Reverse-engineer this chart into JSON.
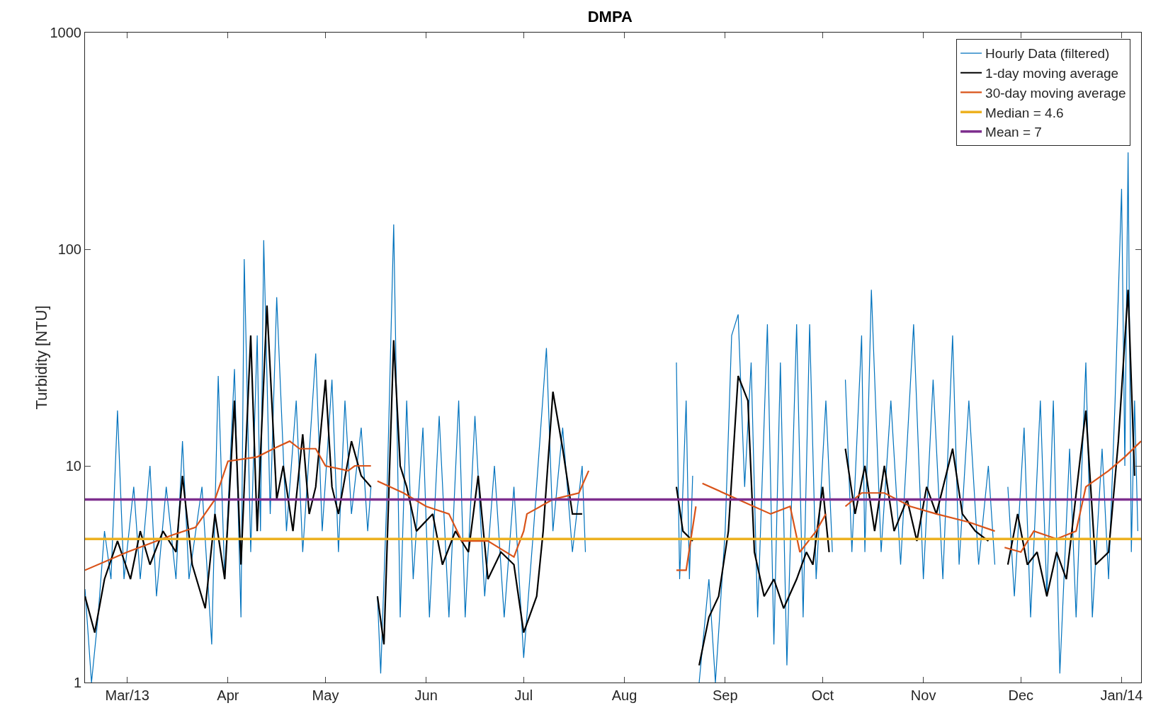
{
  "chart_data": {
    "type": "line",
    "title": "DMPA",
    "ylabel": "Turbidity [NTU]",
    "log": "y",
    "grid": false,
    "legend": "top right",
    "line_style": "solid",
    "marker": "none",
    "xlim": [
      "2013-02-16",
      "2014-01-07"
    ],
    "ylim": [
      1,
      1000
    ],
    "yticks": [
      1,
      10,
      100,
      1000
    ],
    "xticks": [
      {
        "value": "2013-03-01",
        "label": "Mar/13"
      },
      {
        "value": "2013-04-01",
        "label": "Apr"
      },
      {
        "value": "2013-05-01",
        "label": "May"
      },
      {
        "value": "2013-06-01",
        "label": "Jun"
      },
      {
        "value": "2013-07-01",
        "label": "Jul"
      },
      {
        "value": "2013-08-01",
        "label": "Aug"
      },
      {
        "value": "2013-09-01",
        "label": "Sep"
      },
      {
        "value": "2013-10-01",
        "label": "Oct"
      },
      {
        "value": "2013-11-01",
        "label": "Nov"
      },
      {
        "value": "2013-12-01",
        "label": "Dec"
      },
      {
        "value": "2014-01-01",
        "label": "Jan/14"
      }
    ],
    "series": [
      {
        "name": "Hourly Data (filtered)",
        "color": "#0072bd",
        "x": [
          "2013-02-16",
          "2013-02-18",
          "2013-02-20",
          "2013-02-22",
          "2013-02-24",
          "2013-02-26",
          "2013-02-28",
          "2013-03-03",
          "2013-03-05",
          "2013-03-08",
          "2013-03-10",
          "2013-03-13",
          "2013-03-16",
          "2013-03-18",
          "2013-03-20",
          "2013-03-24",
          "2013-03-27",
          "2013-03-29",
          "2013-03-31",
          "2013-04-03",
          "2013-04-05",
          "2013-04-06",
          "2013-04-08",
          "2013-04-10",
          "2013-04-11",
          "2013-04-12",
          "2013-04-14",
          "2013-04-16",
          "2013-04-19",
          "2013-04-22",
          "2013-04-24",
          "2013-04-28",
          "2013-04-30",
          "2013-05-03",
          "2013-05-05",
          "2013-05-07",
          "2013-05-09",
          "2013-05-12",
          "2013-05-14",
          "2013-05-15",
          "2013-05-16",
          "2013-05-17",
          "2013-05-18",
          "2013-05-20",
          "2013-05-22",
          "2013-05-24",
          "2013-05-26",
          "2013-05-28",
          "2013-05-31",
          "2013-06-02",
          "2013-06-05",
          "2013-06-08",
          "2013-06-11",
          "2013-06-13",
          "2013-06-16",
          "2013-06-19",
          "2013-06-22",
          "2013-06-25",
          "2013-06-28",
          "2013-07-01",
          "2013-07-04",
          "2013-07-08",
          "2013-07-10",
          "2013-07-13",
          "2013-07-16",
          "2013-07-19",
          "2013-07-20",
          "2013-08-01",
          "2013-08-17",
          "2013-08-18",
          "2013-08-20",
          "2013-08-21",
          "2013-08-22",
          "2013-08-23",
          "2013-08-24",
          "2013-08-27",
          "2013-08-29",
          "2013-09-01",
          "2013-09-03",
          "2013-09-05",
          "2013-09-07",
          "2013-09-09",
          "2013-09-11",
          "2013-09-14",
          "2013-09-16",
          "2013-09-18",
          "2013-09-20",
          "2013-09-23",
          "2013-09-25",
          "2013-09-27",
          "2013-09-29",
          "2013-10-02",
          "2013-10-04",
          "2013-10-06",
          "2013-10-08",
          "2013-10-10",
          "2013-10-13",
          "2013-10-14",
          "2013-10-16",
          "2013-10-19",
          "2013-10-22",
          "2013-10-25",
          "2013-10-29",
          "2013-11-01",
          "2013-11-04",
          "2013-11-07",
          "2013-11-10",
          "2013-11-12",
          "2013-11-15",
          "2013-11-18",
          "2013-11-21",
          "2013-11-23",
          "2013-11-25",
          "2013-11-27",
          "2013-11-29",
          "2013-12-02",
          "2013-12-04",
          "2013-12-07",
          "2013-12-09",
          "2013-12-11",
          "2013-12-13",
          "2013-12-16",
          "2013-12-18",
          "2013-12-21",
          "2013-12-23",
          "2013-12-26",
          "2013-12-28",
          "2013-12-30",
          "2014-01-01",
          "2014-01-02",
          "2014-01-03",
          "2014-01-04",
          "2014-01-05",
          "2014-01-06"
        ],
        "values": [
          2.7,
          1.0,
          2,
          5,
          3,
          18,
          3,
          8,
          3,
          10,
          2.5,
          8,
          3,
          13,
          3,
          8,
          1.5,
          26,
          3,
          28,
          2,
          90,
          4,
          40,
          5,
          110,
          6,
          60,
          5,
          20,
          4,
          33,
          5,
          25,
          4,
          20,
          6,
          15,
          5,
          8,
          null,
          2.5,
          1.1,
          8,
          130,
          2,
          20,
          3,
          15,
          2,
          17,
          2,
          20,
          2,
          17,
          2.5,
          10,
          2,
          8,
          1.3,
          5,
          35,
          5,
          15,
          4,
          10,
          4,
          null,
          30,
          3,
          20,
          3,
          9,
          null,
          1.0,
          3,
          1.0,
          5,
          40,
          50,
          8,
          30,
          2,
          45,
          1.5,
          30,
          1.2,
          45,
          2,
          45,
          3,
          20,
          4,
          null,
          25,
          4,
          40,
          4,
          65,
          4,
          20,
          3.5,
          45,
          3,
          25,
          3,
          40,
          3.5,
          20,
          3.5,
          10,
          3.5,
          null,
          8,
          2.5,
          15,
          2,
          20,
          2.5,
          20,
          1.1,
          12,
          2,
          30,
          2,
          12,
          3,
          20,
          190,
          10,
          280,
          4,
          20,
          5
        ]
      },
      {
        "name": "1-day moving average",
        "color": "#000000",
        "x": [
          "2013-02-16",
          "2013-02-19",
          "2013-02-22",
          "2013-02-26",
          "2013-03-02",
          "2013-03-05",
          "2013-03-08",
          "2013-03-12",
          "2013-03-16",
          "2013-03-18",
          "2013-03-21",
          "2013-03-25",
          "2013-03-28",
          "2013-03-31",
          "2013-04-03",
          "2013-04-05",
          "2013-04-08",
          "2013-04-10",
          "2013-04-13",
          "2013-04-16",
          "2013-04-18",
          "2013-04-21",
          "2013-04-24",
          "2013-04-26",
          "2013-04-28",
          "2013-05-01",
          "2013-05-03",
          "2013-05-05",
          "2013-05-09",
          "2013-05-12",
          "2013-05-15",
          "2013-05-16",
          "2013-05-17",
          "2013-05-19",
          "2013-05-22",
          "2013-05-24",
          "2013-05-26",
          "2013-05-29",
          "2013-06-03",
          "2013-06-06",
          "2013-06-10",
          "2013-06-14",
          "2013-06-17",
          "2013-06-20",
          "2013-06-24",
          "2013-06-28",
          "2013-07-01",
          "2013-07-05",
          "2013-07-07",
          "2013-07-10",
          "2013-07-13",
          "2013-07-16",
          "2013-07-19",
          "2013-08-01",
          "2013-08-17",
          "2013-08-19",
          "2013-08-22",
          "2013-08-23",
          "2013-08-24",
          "2013-08-27",
          "2013-08-30",
          "2013-09-02",
          "2013-09-05",
          "2013-09-08",
          "2013-09-10",
          "2013-09-13",
          "2013-09-16",
          "2013-09-19",
          "2013-09-23",
          "2013-09-26",
          "2013-09-28",
          "2013-10-01",
          "2013-10-03",
          "2013-10-06",
          "2013-10-08",
          "2013-10-11",
          "2013-10-14",
          "2013-10-17",
          "2013-10-20",
          "2013-10-23",
          "2013-10-27",
          "2013-10-30",
          "2013-11-02",
          "2013-11-05",
          "2013-11-10",
          "2013-11-13",
          "2013-11-17",
          "2013-11-21",
          "2013-11-25",
          "2013-11-27",
          "2013-11-30",
          "2013-12-03",
          "2013-12-06",
          "2013-12-09",
          "2013-12-12",
          "2013-12-15",
          "2013-12-19",
          "2013-12-21",
          "2013-12-24",
          "2013-12-28",
          "2013-12-31",
          "2014-01-03",
          "2014-01-05"
        ],
        "values": [
          2.5,
          1.7,
          3,
          4.5,
          3,
          5,
          3.5,
          5,
          4,
          9,
          3.5,
          2.2,
          6,
          3,
          20,
          3.5,
          40,
          5,
          55,
          7,
          10,
          5,
          14,
          6,
          8,
          25,
          8,
          6,
          13,
          9,
          8,
          null,
          2.5,
          1.5,
          38,
          10,
          8,
          5,
          6,
          3.5,
          5,
          4,
          9,
          3,
          4,
          3.5,
          1.7,
          2.5,
          5,
          22,
          12,
          6,
          6,
          null,
          8,
          5,
          4.5,
          null,
          1.2,
          2,
          2.5,
          5,
          26,
          20,
          4,
          2.5,
          3,
          2.2,
          3,
          4,
          3.5,
          8,
          4,
          null,
          12,
          6,
          10,
          5,
          10,
          5,
          7,
          4.5,
          8,
          6,
          12,
          6,
          5,
          4.5,
          null,
          3.5,
          6,
          3.5,
          4,
          2.5,
          4,
          3,
          10,
          18,
          3.5,
          4,
          13,
          65,
          9
        ]
      },
      {
        "name": "30-day moving average",
        "color": "#d95319",
        "x": [
          "2013-02-16",
          "2013-03-01",
          "2013-03-15",
          "2013-03-22",
          "2013-03-28",
          "2013-04-01",
          "2013-04-10",
          "2013-04-15",
          "2013-04-20",
          "2013-04-23",
          "2013-04-28",
          "2013-05-01",
          "2013-05-08",
          "2013-05-10",
          "2013-05-15",
          "2013-05-16",
          "2013-05-17",
          "2013-05-25",
          "2013-06-01",
          "2013-06-08",
          "2013-06-12",
          "2013-06-20",
          "2013-06-28",
          "2013-07-01",
          "2013-07-02",
          "2013-07-10",
          "2013-07-18",
          "2013-07-21",
          "2013-08-01",
          "2013-08-17",
          "2013-08-20",
          "2013-08-23",
          "2013-08-24",
          "2013-08-25",
          "2013-09-05",
          "2013-09-15",
          "2013-09-21",
          "2013-09-24",
          "2013-09-29",
          "2013-10-02",
          "2013-10-05",
          "2013-10-08",
          "2013-10-13",
          "2013-10-20",
          "2013-10-28",
          "2013-11-05",
          "2013-11-15",
          "2013-11-23",
          "2013-11-25",
          "2013-11-26",
          "2013-12-01",
          "2013-12-05",
          "2013-12-12",
          "2013-12-18",
          "2013-12-21",
          "2013-12-28",
          "2014-01-02",
          "2014-01-07"
        ],
        "values": [
          3.3,
          4.0,
          4.8,
          5.2,
          7,
          10.5,
          11,
          12,
          13,
          12,
          12,
          10,
          9.5,
          10,
          10,
          null,
          8.5,
          7.5,
          6.5,
          6,
          4.5,
          4.5,
          3.8,
          5,
          6,
          7,
          7.5,
          9.5,
          null,
          3.3,
          3.3,
          6.5,
          null,
          8.3,
          7,
          6,
          6.5,
          4,
          5,
          6,
          null,
          6.5,
          7.5,
          7.5,
          6.5,
          6,
          5.5,
          5,
          null,
          4.2,
          4,
          5,
          4.6,
          5,
          8,
          9.5,
          11,
          13
        ]
      }
    ],
    "ref_lines": [
      {
        "axis": "y",
        "value": 4.6,
        "label": "Median = 4.6",
        "color": "#edb120"
      },
      {
        "axis": "y",
        "value": 7,
        "label": "Mean = 7",
        "color": "#7e2f8e"
      }
    ]
  }
}
